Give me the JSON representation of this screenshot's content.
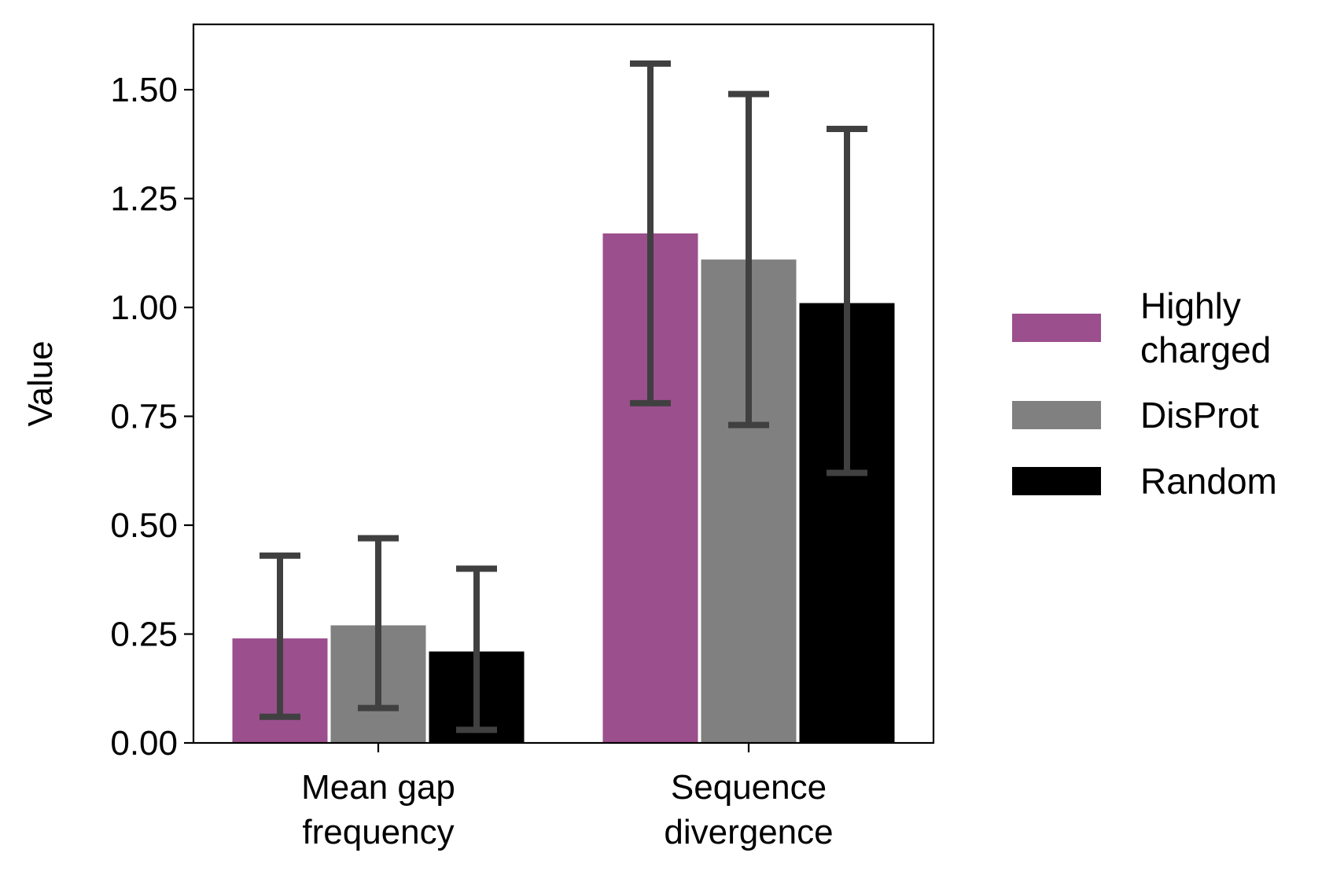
{
  "chart_data": {
    "type": "bar",
    "title": "",
    "xlabel": "",
    "ylabel": "Value",
    "ylim": [
      0,
      1.65
    ],
    "yticks": [
      "0.00",
      "0.25",
      "0.50",
      "0.75",
      "1.00",
      "1.25",
      "1.50"
    ],
    "ytick_values": [
      0,
      0.25,
      0.5,
      0.75,
      1.0,
      1.25,
      1.5
    ],
    "categories": [
      [
        "Mean gap",
        "frequency"
      ],
      [
        "Sequence",
        "divergence"
      ]
    ],
    "grid": false,
    "legend_position": "right",
    "series": [
      {
        "name": [
          "Highly",
          "charged"
        ],
        "color": "#9b4f8d",
        "values": [
          0.24,
          1.17
        ],
        "err_low": [
          0.06,
          0.78
        ],
        "err_high": [
          0.43,
          1.56
        ]
      },
      {
        "name": [
          "DisProt"
        ],
        "color": "#808080",
        "values": [
          0.27,
          1.11
        ],
        "err_low": [
          0.08,
          0.73
        ],
        "err_high": [
          0.47,
          1.49
        ]
      },
      {
        "name": [
          "Random"
        ],
        "color": "#000000",
        "values": [
          0.21,
          1.01
        ],
        "err_low": [
          0.03,
          0.62
        ],
        "err_high": [
          0.4,
          1.41
        ]
      }
    ],
    "errorbar_color": "#404040"
  }
}
